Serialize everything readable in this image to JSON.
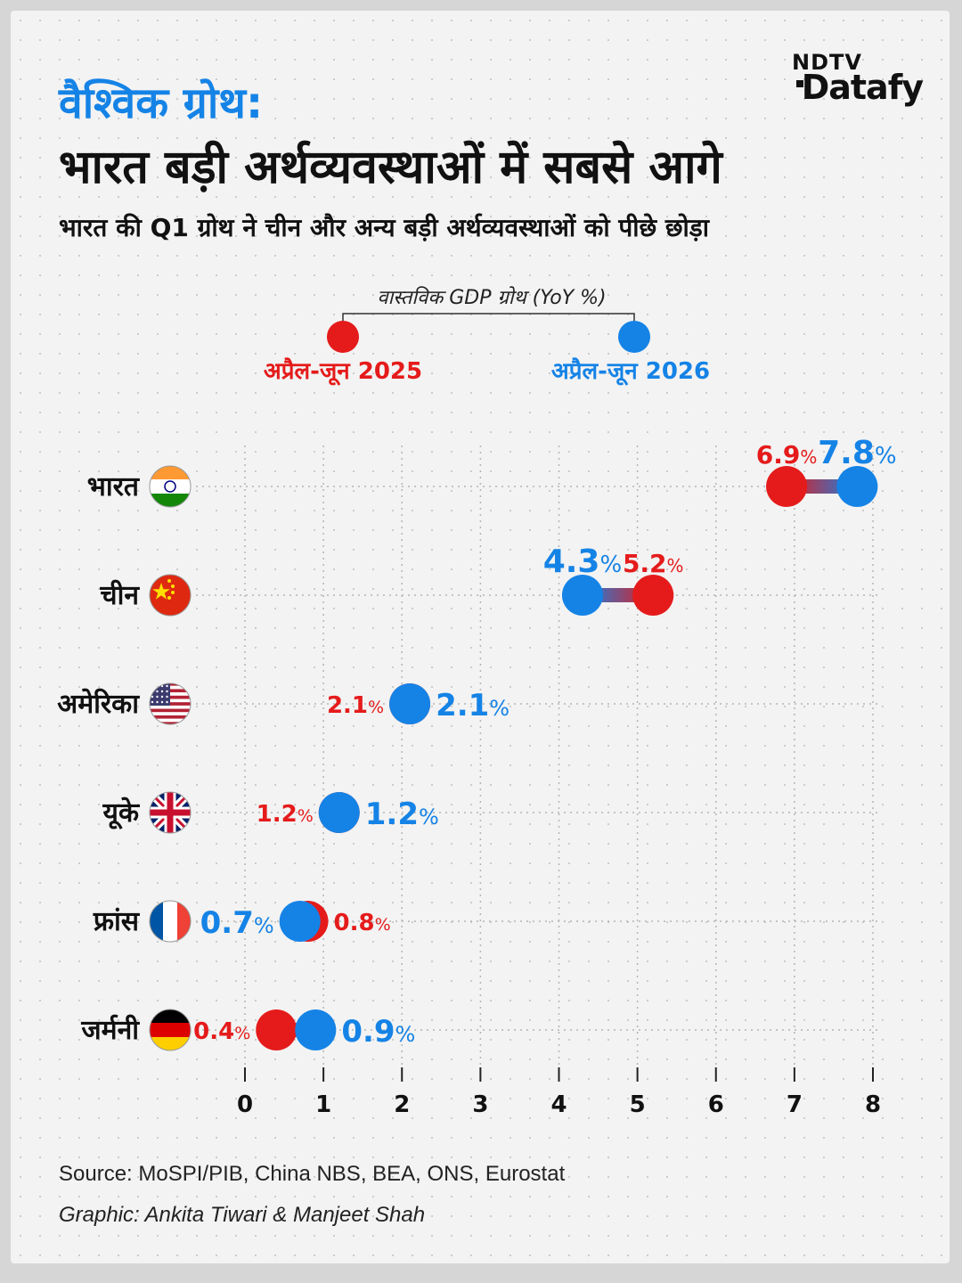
{
  "brand": {
    "top": "NDTV",
    "main": "Datafy"
  },
  "title_line1": "वैश्विक ग्रोथ:",
  "title_line2": "भारत बड़ी अर्थव्यवस्थाओं में सबसे आगे",
  "subtitle": "भारत की Q1 ग्रोथ ने चीन और अन्य बड़ी अर्थव्यवस्थाओं को पीछे छोड़ा",
  "footer": {
    "source": "Source: MoSPI/PIB, China NBS, BEA, ONS, Eurostat",
    "graphic": "Graphic: Ankita Tiwari & Manjeet Shah"
  },
  "colors": {
    "series_2025": "#e51b1b",
    "series_2026": "#1583e6",
    "title_accent": "#1583e6"
  },
  "chart_data": {
    "type": "dumbbell",
    "legend_title": "वास्तविक GDP ग्रोथ (YoY %)",
    "legend_placement": "top-center",
    "grid": true,
    "xlim": [
      0,
      8
    ],
    "xticks": [
      "0",
      "1",
      "2",
      "3",
      "4",
      "5",
      "6",
      "7",
      "8"
    ],
    "categories": [
      {
        "name": "भारत",
        "flag": "india-flag"
      },
      {
        "name": "चीन",
        "flag": "china-flag"
      },
      {
        "name": "अमेरिका",
        "flag": "usa-flag"
      },
      {
        "name": "यूके",
        "flag": "uk-flag"
      },
      {
        "name": "फ्रांस",
        "flag": "france-flag"
      },
      {
        "name": "जर्मनी",
        "flag": "germany-flag"
      }
    ],
    "series": [
      {
        "name": "अप्रैल-जून 2025",
        "color": "#e51b1b",
        "values": [
          6.9,
          5.2,
          2.1,
          1.2,
          0.8,
          0.4
        ],
        "labels": [
          "6.9",
          "5.2",
          "2.1",
          "1.2",
          "0.8",
          "0.4"
        ]
      },
      {
        "name": "अप्रैल-जून 2026",
        "color": "#1583e6",
        "values": [
          7.8,
          4.3,
          2.1,
          1.2,
          0.7,
          0.9
        ],
        "labels": [
          "7.8",
          "4.3",
          "2.1",
          "1.2",
          "0.7",
          "0.9"
        ]
      }
    ],
    "unit": "%"
  }
}
